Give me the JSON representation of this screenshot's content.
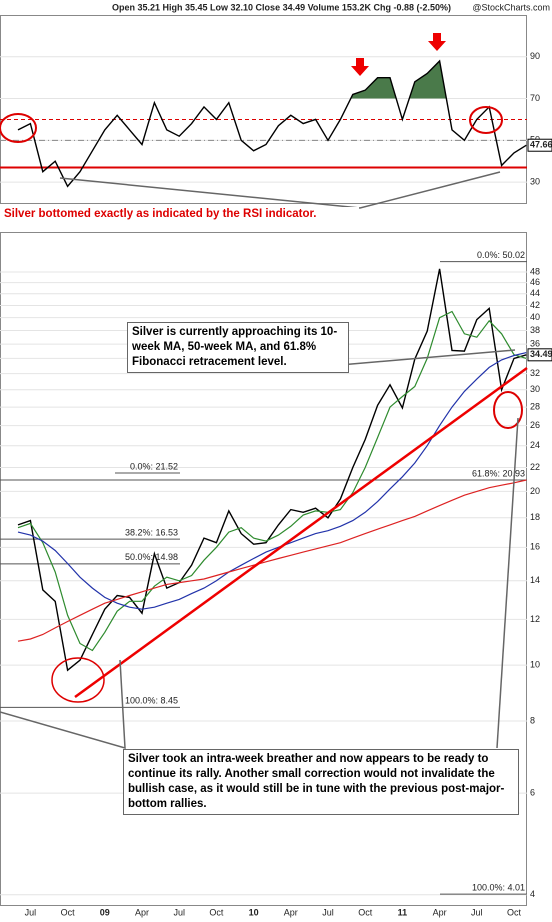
{
  "header": {
    "quote": "Open 35.21  High 35.45  Low 32.10  Close 34.49  Volume 153.2K  Chg -0.88 (-2.50%)",
    "source": "@StockCharts.com"
  },
  "chart_data": [
    {
      "type": "line",
      "ylim": [
        20,
        110
      ],
      "yticks": [
        30,
        50,
        70,
        90
      ],
      "series": [
        {
          "color": "#000000",
          "values": [
            55,
            58,
            35,
            40,
            28,
            35,
            45,
            55,
            62,
            55,
            48,
            68,
            55,
            52,
            58,
            66,
            60,
            68,
            50,
            45,
            48,
            57,
            62,
            58,
            60,
            50,
            60,
            72,
            74,
            80,
            80,
            60,
            78,
            82,
            88,
            55,
            50,
            60,
            66,
            38,
            44,
            47.66
          ]
        }
      ],
      "reference_lines": [
        {
          "value": 60,
          "color": "#dd0000",
          "style": "dashed"
        },
        {
          "value": 37,
          "color": "#dd0000",
          "style": "solid"
        },
        {
          "value": 50,
          "color": "#888888",
          "style": "dashdot"
        }
      ],
      "overbought_fill": {
        "level": 70,
        "color": "#4a7a4a"
      },
      "annotation": "Silver bottomed exactly as indicated by the RSI indicator."
    },
    {
      "type": "line",
      "log_scale": true,
      "categories": [
        null,
        "Jul",
        null,
        null,
        "Oct",
        null,
        null,
        "09",
        null,
        null,
        "Apr",
        null,
        null,
        "Jul",
        null,
        null,
        "Oct",
        null,
        null,
        "10",
        null,
        null,
        "Apr",
        null,
        null,
        "Jul",
        null,
        null,
        "Oct",
        null,
        null,
        "11",
        null,
        null,
        "Apr",
        null,
        null,
        "Jul",
        null,
        null,
        "Oct",
        null
      ],
      "ylim": [
        3.84,
        56.3
      ],
      "yticks": [
        4,
        6,
        8,
        10,
        12,
        14,
        16,
        18,
        20,
        22,
        24,
        26,
        28,
        30,
        32,
        34,
        36,
        38,
        40,
        42,
        44,
        46,
        48
      ],
      "series": [
        {
          "color": "#000000",
          "values": [
            17.5,
            17.8,
            13.5,
            12.9,
            9.8,
            10.2,
            11.3,
            12.5,
            13.2,
            13.1,
            12.3,
            15.6,
            13.6,
            13.9,
            14.9,
            16.6,
            16.3,
            18.5,
            16.9,
            16.2,
            16.3,
            17.5,
            18.6,
            18.4,
            18.7,
            18.0,
            19.4,
            22.0,
            24.6,
            28.2,
            30.6,
            27.9,
            33.9,
            37.9,
            48.6,
            35.1,
            35.0,
            39.7,
            41.5,
            30.0,
            34.0,
            34.49
          ]
        },
        {
          "color": "#2e8b2e",
          "values": [
            17.3,
            17.6,
            16.3,
            14.5,
            12.2,
            10.9,
            10.6,
            11.4,
            12.4,
            12.9,
            12.9,
            13.7,
            14.2,
            14.0,
            14.3,
            15.2,
            16.0,
            17.0,
            17.3,
            16.6,
            16.4,
            16.8,
            17.4,
            18.2,
            18.5,
            18.4,
            18.6,
            19.9,
            22.0,
            24.8,
            28.0,
            29.2,
            30.4,
            34.0,
            40.0,
            41.0,
            37.5,
            37.0,
            39.5,
            37.5,
            34.5,
            34.0
          ]
        },
        {
          "color": "#2233aa",
          "values": [
            17.0,
            16.8,
            16.4,
            15.8,
            15.0,
            14.2,
            13.6,
            13.1,
            12.8,
            12.6,
            12.5,
            12.6,
            12.8,
            13.0,
            13.3,
            13.6,
            14.0,
            14.5,
            14.9,
            15.3,
            15.7,
            16.0,
            16.3,
            16.6,
            16.9,
            17.1,
            17.4,
            17.8,
            18.4,
            19.2,
            20.2,
            21.2,
            22.4,
            24.0,
            26.0,
            28.0,
            29.8,
            31.3,
            32.8,
            33.8,
            34.4,
            34.8
          ]
        },
        {
          "color": "#dd2222",
          "values": [
            11.0,
            11.1,
            11.3,
            11.6,
            11.9,
            12.2,
            12.5,
            12.8,
            13.0,
            13.2,
            13.4,
            13.6,
            13.8,
            13.9,
            14.0,
            14.1,
            14.3,
            14.5,
            14.7,
            14.9,
            15.1,
            15.3,
            15.5,
            15.7,
            15.9,
            16.1,
            16.3,
            16.6,
            16.9,
            17.2,
            17.5,
            17.8,
            18.1,
            18.5,
            18.9,
            19.3,
            19.7,
            20.0,
            20.3,
            20.5,
            20.7,
            20.93
          ]
        }
      ],
      "fib_levels": [
        {
          "value": 50.02,
          "label": "0.0%: 50.02"
        },
        {
          "value": 21.52,
          "label": "0.0%: 21.52"
        },
        {
          "value": 16.53,
          "label": "38.2%: 16.53"
        },
        {
          "value": 14.98,
          "label": "50.0%: 14.98"
        },
        {
          "value": 8.45,
          "label": "100.0%: 8.45"
        },
        {
          "value": 20.93,
          "label": "61.8%: 20.93"
        },
        {
          "value": 4.01,
          "label": "100.0%: 4.01"
        }
      ],
      "annotations": [
        "Silver is currently approaching its 10-week MA, 50-week MA, and 61.8% Fibonacci retracement level.",
        "Silver took an intra-week breather and now appears to be ready to continue its rally. Another small correction would not invalidate the bullish case, as it would still be in tune with the previous post-major-bottom rallies."
      ]
    }
  ]
}
